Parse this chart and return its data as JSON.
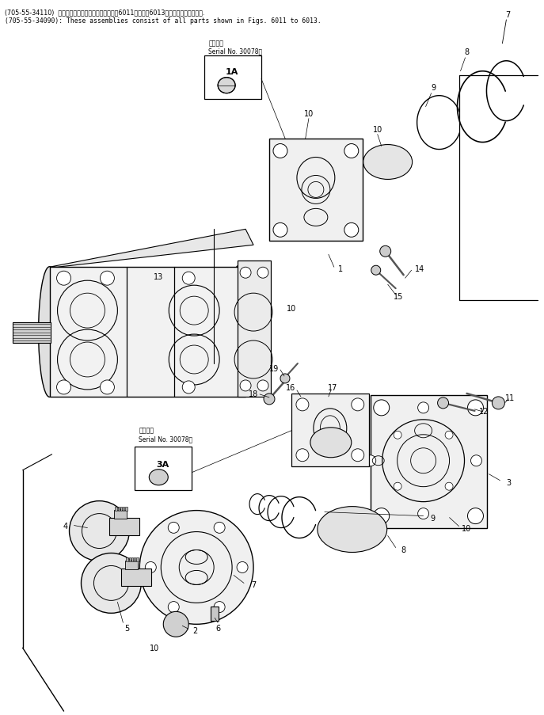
{
  "header_line1": "(705-55-34110)  これらのアセンブリの構成部品はㄖ6011図からㄖ6013図の部品まで含みます.",
  "header_line2": "(705-55-34090): These assemblies consist of all parts shown in Figs. 6011 to 6013.",
  "serial_upper_1": "適用号機",
  "serial_upper_2": "Serial No. 30078～",
  "serial_lower_1": "適用号機",
  "serial_lower_2": "Serial No. 30078～",
  "bg": "#ffffff",
  "fg": "#000000",
  "figsize": [
    6.87,
    9.04
  ],
  "dpi": 100
}
